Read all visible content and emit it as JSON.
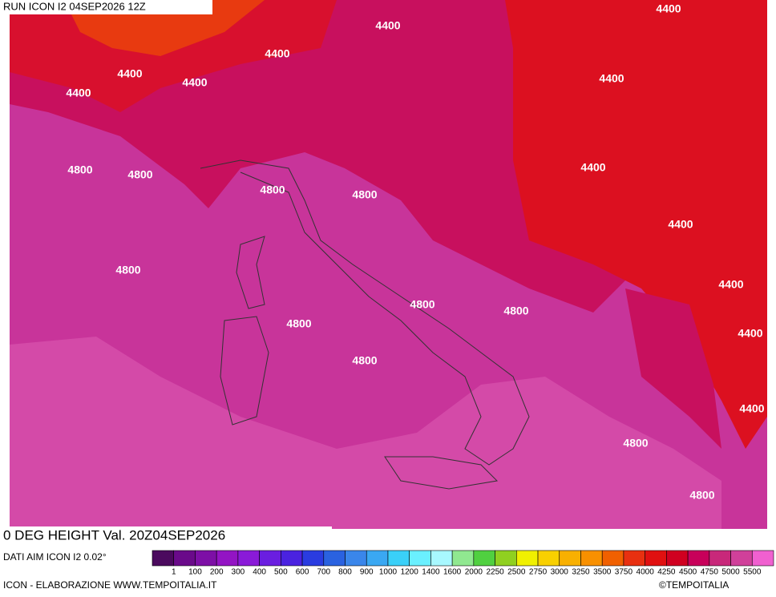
{
  "header": {
    "title": "RUN ICON I2 04SEP2026 12Z"
  },
  "map": {
    "contour_labels": [
      "4400",
      "4400",
      "4400",
      "4400",
      "4400",
      "4400",
      "4400",
      "4400",
      "4400",
      "4400",
      "4400",
      "4400",
      "4800",
      "4800",
      "4800",
      "4800",
      "4800",
      "4800",
      "4800",
      "4800",
      "4800",
      "4800",
      "4800"
    ]
  },
  "footer": {
    "title": "0 DEG HEIGHT Val. 20Z04SEP2026",
    "source": "DATI AIM ICON I2 0.02°",
    "credits_left": "ICON - ELABORAZIONE WWW.TEMPOITALIA.IT",
    "credits_right": "©TEMPOITALIA"
  },
  "colorbar": {
    "colors": [
      "#4b0a5e",
      "#6a0a8a",
      "#7d0fa6",
      "#9314c4",
      "#8a1ad8",
      "#6a1ee0",
      "#4a22e0",
      "#2a3ce0",
      "#2a62e0",
      "#3a86ea",
      "#3aa8f2",
      "#3ad0f8",
      "#6af0ff",
      "#a8f8ff",
      "#90e890",
      "#50d040",
      "#90d020",
      "#f0f000",
      "#f8d000",
      "#f8b000",
      "#f89000",
      "#f06000",
      "#e83010",
      "#e01010",
      "#d00020",
      "#c8005a",
      "#c8287a",
      "#d0409a",
      "#f060d0"
    ],
    "labels": [
      "1",
      "100",
      "200",
      "300",
      "400",
      "500",
      "600",
      "700",
      "800",
      "900",
      "1000",
      "1200",
      "1400",
      "1600",
      "2000",
      "2250",
      "2500",
      "2750",
      "3000",
      "3250",
      "3500",
      "3750",
      "4000",
      "4250",
      "4500",
      "4750",
      "5000",
      "5500"
    ]
  }
}
